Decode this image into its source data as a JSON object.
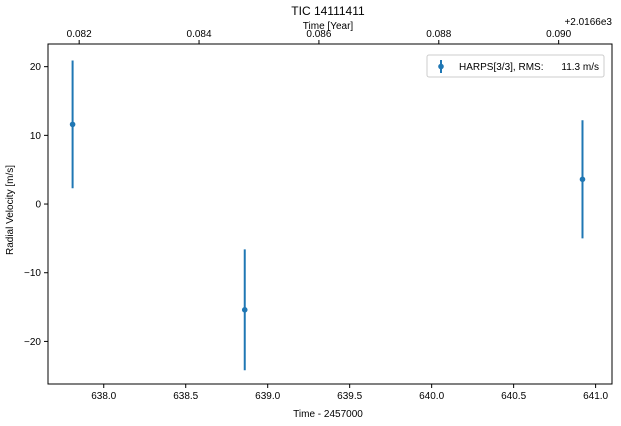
{
  "chart_data": {
    "type": "scatter",
    "title": "TIC 14111411",
    "xlabel": "Time - 2457000",
    "ylabel": "Radial Velocity [m/s]",
    "top_xlabel": "Time [Year]",
    "top_offset": "+2.0166e3",
    "xlim": [
      637.66,
      641.1
    ],
    "ylim": [
      -26.2,
      23.3
    ],
    "xticks": [
      638.0,
      638.5,
      639.0,
      639.5,
      640.0,
      640.5,
      641.0
    ],
    "xtick_labels": [
      "638.0",
      "638.5",
      "639.0",
      "639.5",
      "640.0",
      "640.5",
      "641.0"
    ],
    "yticks": [
      -20,
      -10,
      0,
      10,
      20
    ],
    "ytick_labels": [
      "−20",
      "−10",
      "0",
      "10",
      "20"
    ],
    "top_xticks": [
      0.082,
      0.084,
      0.086,
      0.088,
      0.09
    ],
    "top_xtick_labels": [
      "0.082",
      "0.084",
      "0.086",
      "0.088",
      "0.090"
    ],
    "top_xlim": [
      0.08148,
      0.09089
    ],
    "grid": false,
    "legend_position": "top-right",
    "series": [
      {
        "name": "HARPS[3/3], RMS:",
        "legend_value": "11.3 m/s",
        "color": "#1f77b4",
        "x": [
          637.81,
          638.86,
          640.92
        ],
        "y": [
          11.6,
          -15.4,
          3.6
        ],
        "yerr": [
          9.3,
          8.8,
          8.6
        ]
      }
    ]
  }
}
